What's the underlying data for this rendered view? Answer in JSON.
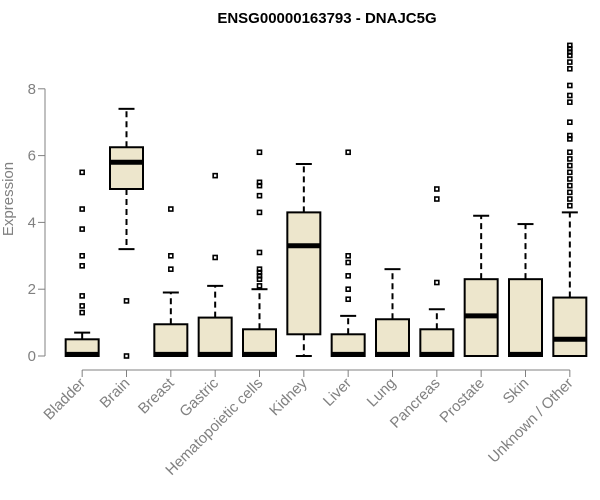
{
  "chart_data": {
    "type": "boxplot",
    "title": "ENSG00000163793 - DNAJC5G",
    "ylabel": "Expression",
    "xlabel": "",
    "ylim": [
      0,
      9.4
    ],
    "yticks": [
      0,
      2,
      4,
      6,
      8
    ],
    "categories": [
      "Bladder",
      "Brain",
      "Breast",
      "Gastric",
      "Hematopoietic cells",
      "Kidney",
      "Liver",
      "Lung",
      "Pancreas",
      "Prostate",
      "Skin",
      "Unknown / Other"
    ],
    "box_color": "#EDE6CC",
    "axis_color": "#808080",
    "boxes": [
      {
        "category": "Bladder",
        "whisker_low": 0,
        "q1": 0,
        "median": 0.05,
        "q3": 0.5,
        "whisker_high": 0.7,
        "outliers": [
          1.3,
          1.5,
          1.8,
          2.7,
          3.0,
          3.8,
          4.4,
          5.5
        ]
      },
      {
        "category": "Brain",
        "whisker_low": 3.2,
        "q1": 5.0,
        "median": 5.8,
        "q3": 6.25,
        "whisker_high": 7.4,
        "outliers": [
          0.0,
          1.65
        ]
      },
      {
        "category": "Breast",
        "whisker_low": 0,
        "q1": 0,
        "median": 0.05,
        "q3": 0.95,
        "whisker_high": 1.9,
        "outliers": [
          2.6,
          3.0,
          4.4
        ]
      },
      {
        "category": "Gastric",
        "whisker_low": 0,
        "q1": 0,
        "median": 0.05,
        "q3": 1.15,
        "whisker_high": 2.1,
        "outliers": [
          2.95,
          5.4
        ]
      },
      {
        "category": "Hematopoietic cells",
        "whisker_low": 0,
        "q1": 0,
        "median": 0.05,
        "q3": 0.8,
        "whisker_high": 2.0,
        "outliers": [
          2.1,
          2.3,
          2.4,
          2.5,
          2.6,
          3.1,
          4.3,
          4.8,
          5.1,
          5.2,
          6.1
        ]
      },
      {
        "category": "Kidney",
        "whisker_low": 0,
        "q1": 0.65,
        "median": 3.3,
        "q3": 4.3,
        "whisker_high": 5.75,
        "outliers": []
      },
      {
        "category": "Liver",
        "whisker_low": 0,
        "q1": 0,
        "median": 0.05,
        "q3": 0.65,
        "whisker_high": 1.2,
        "outliers": [
          1.7,
          2.0,
          2.4,
          2.8,
          3.0,
          6.1
        ]
      },
      {
        "category": "Lung",
        "whisker_low": 0,
        "q1": 0,
        "median": 0.05,
        "q3": 1.1,
        "whisker_high": 2.6,
        "outliers": []
      },
      {
        "category": "Pancreas",
        "whisker_low": 0,
        "q1": 0,
        "median": 0.05,
        "q3": 0.8,
        "whisker_high": 1.4,
        "outliers": [
          2.2,
          4.7,
          5.0
        ]
      },
      {
        "category": "Prostate",
        "whisker_low": 0,
        "q1": 0,
        "median": 1.2,
        "q3": 2.3,
        "whisker_high": 4.2,
        "outliers": []
      },
      {
        "category": "Skin",
        "whisker_low": 0,
        "q1": 0,
        "median": 0.05,
        "q3": 2.3,
        "whisker_high": 3.95,
        "outliers": []
      },
      {
        "category": "Unknown / Other",
        "whisker_low": 0,
        "q1": 0,
        "median": 0.5,
        "q3": 1.75,
        "whisker_high": 4.3,
        "outliers": [
          4.5,
          4.7,
          4.9,
          5.1,
          5.3,
          5.5,
          5.7,
          5.9,
          6.1,
          6.5,
          6.6,
          7.0,
          7.6,
          7.8,
          8.1,
          8.6,
          8.8,
          9.0,
          9.1,
          9.2,
          9.3
        ]
      }
    ]
  }
}
